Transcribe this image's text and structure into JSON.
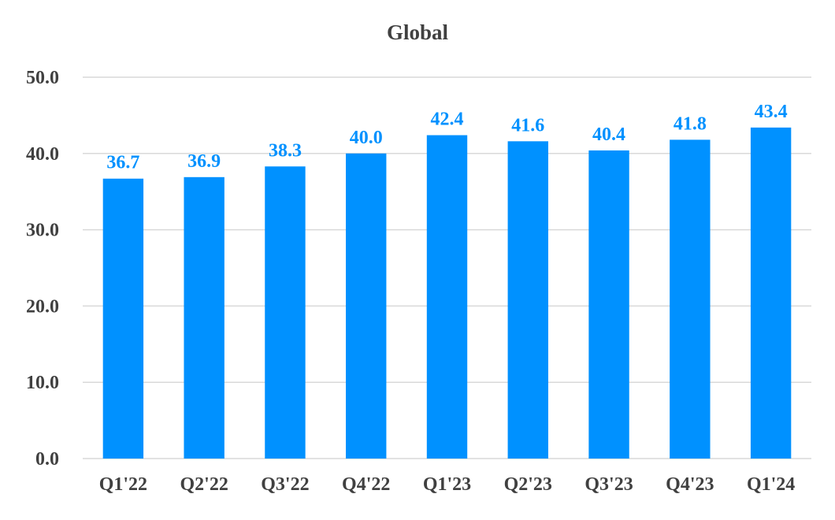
{
  "chart_data": {
    "type": "bar",
    "title": "Global",
    "xlabel": "",
    "ylabel": "",
    "categories": [
      "Q1'22",
      "Q2'22",
      "Q3'22",
      "Q4'22",
      "Q1'23",
      "Q2'23",
      "Q3'23",
      "Q4'23",
      "Q1'24"
    ],
    "values": [
      36.7,
      36.9,
      38.3,
      40.0,
      42.4,
      41.6,
      40.4,
      41.8,
      43.4
    ],
    "value_labels": [
      "36.7",
      "36.9",
      "38.3",
      "40.0",
      "42.4",
      "41.6",
      "40.4",
      "41.8",
      "43.4"
    ],
    "ylim": [
      0,
      50
    ],
    "yticks": [
      "0.0",
      "10.0",
      "20.0",
      "30.0",
      "40.0",
      "50.0"
    ],
    "grid": true,
    "legend": "none",
    "colors": {
      "bar": "#0091FF",
      "label": "#0091FF",
      "grid": "#D9D9D9",
      "text": "#404040"
    }
  }
}
